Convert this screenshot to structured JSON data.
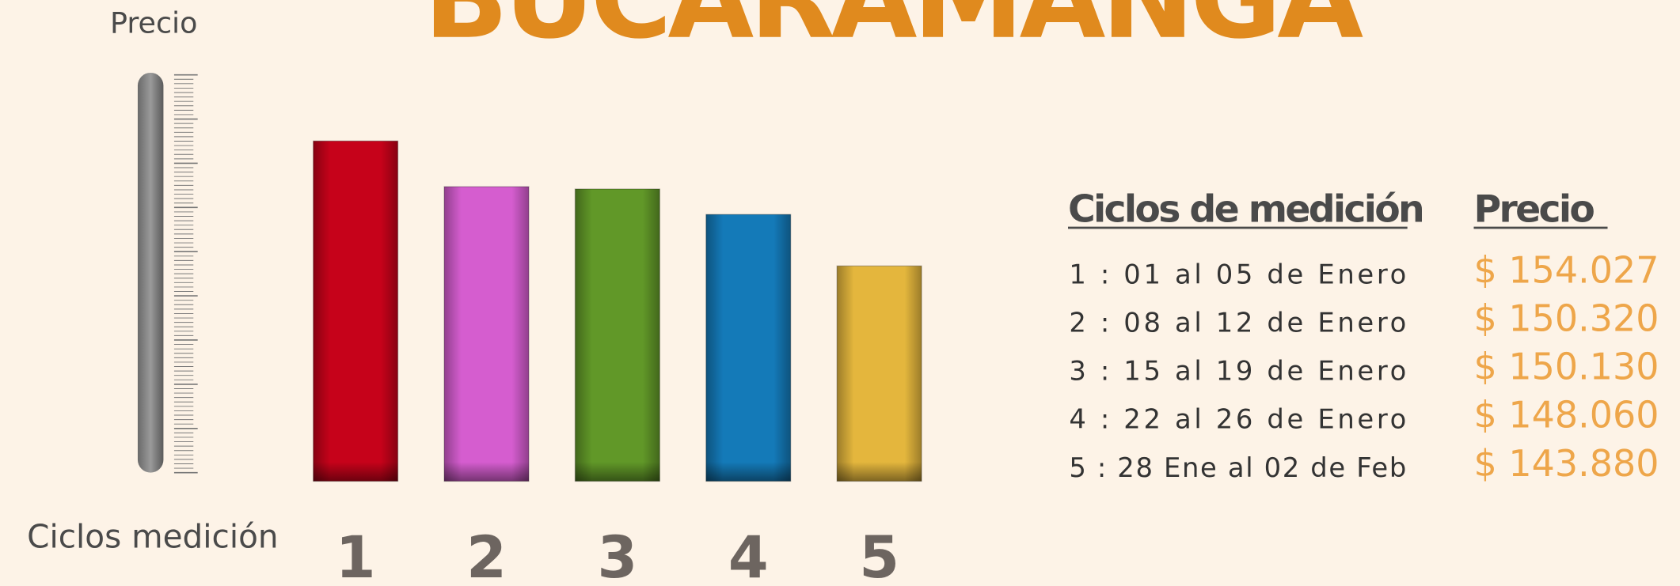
{
  "chart_data": {
    "type": "bar",
    "title": "BUCARAMANGA",
    "y_label": "Precio",
    "x_label": "Ciclos medición",
    "categories": [
      "1",
      "2",
      "3",
      "4",
      "5"
    ],
    "values": [
      154027,
      150320,
      150130,
      148060,
      143880
    ],
    "value_labels": [
      "$ 154.027",
      "$ 150.320",
      "$ 150.130",
      "$ 148.060",
      "$ 143.880"
    ],
    "colors": [
      "#d0021b",
      "#e062da",
      "#66a02a",
      "#1580c2",
      "#f0c040"
    ],
    "ylim": [
      126400,
      159400
    ],
    "table": {
      "headers": [
        "Ciclos de medición",
        "Precio"
      ],
      "rows": [
        "1 :  01  al  05  de  Enero",
        "2 :  08  al  12  de  Enero",
        "3 :  15  al  19  de  Enero",
        "4 :  22  al  26  de  Enero",
        "5 :  28  Ene  al  02  de  Feb"
      ]
    }
  }
}
